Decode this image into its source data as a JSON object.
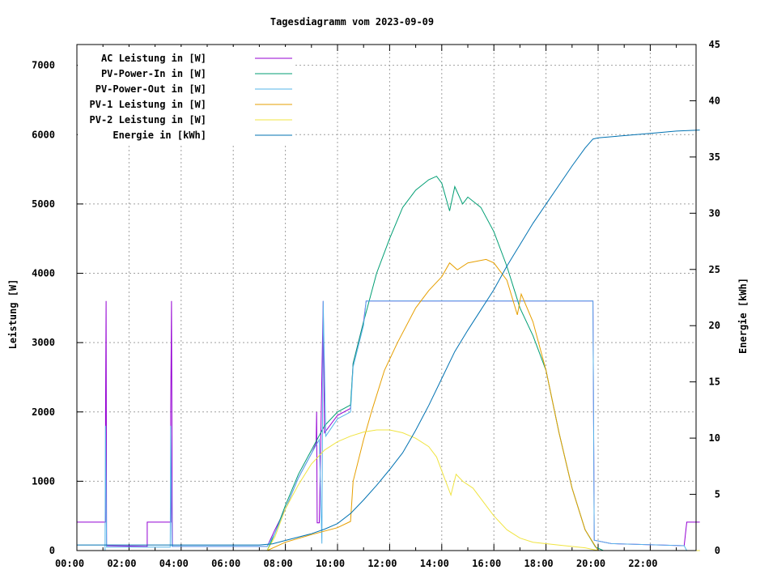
{
  "chart_data": {
    "type": "line",
    "title": "Tagesdiagramm vom 2023-09-09",
    "xlabel": "",
    "ylabel": "Leistung [W]",
    "y2label": "Energie [kWh]",
    "xlim": [
      0,
      23.9
    ],
    "ylim": [
      0,
      7300
    ],
    "y2lim": [
      0,
      45
    ],
    "xticks": [
      "00:00",
      "02:00",
      "04:00",
      "06:00",
      "08:00",
      "10:00",
      "12:00",
      "14:00",
      "16:00",
      "18:00",
      "20:00",
      "22:00"
    ],
    "yticks": [
      0,
      1000,
      2000,
      3000,
      4000,
      5000,
      6000,
      7000
    ],
    "y2ticks": [
      0,
      5,
      10,
      15,
      20,
      25,
      30,
      35,
      40,
      45
    ],
    "grid": true,
    "legend_position": "top-left",
    "series": [
      {
        "name": "AC Leistung in [W]",
        "color": "#9400d3",
        "axis": "y",
        "points": [
          [
            0,
            410
          ],
          [
            1.1,
            410
          ],
          [
            1.1,
            2000
          ],
          [
            1.12,
            3600
          ],
          [
            1.14,
            70
          ],
          [
            2.7,
            60
          ],
          [
            2.7,
            410
          ],
          [
            3.6,
            410
          ],
          [
            3.6,
            2000
          ],
          [
            3.63,
            3600
          ],
          [
            3.66,
            60
          ],
          [
            7.3,
            60
          ],
          [
            7.6,
            300
          ],
          [
            8,
            600
          ],
          [
            8.5,
            1050
          ],
          [
            9,
            1400
          ],
          [
            9.18,
            1550
          ],
          [
            9.2,
            2000
          ],
          [
            9.22,
            400
          ],
          [
            9.3,
            400
          ],
          [
            9.45,
            3600
          ],
          [
            9.5,
            1700
          ],
          [
            10,
            1950
          ],
          [
            10.5,
            2050
          ],
          [
            10.6,
            2700
          ],
          [
            11,
            3300
          ],
          [
            11.1,
            3600
          ],
          [
            19.8,
            3600
          ],
          [
            19.85,
            150
          ],
          [
            20.5,
            100
          ],
          [
            23.3,
            70
          ],
          [
            23.4,
            410
          ],
          [
            23.9,
            410
          ]
        ]
      },
      {
        "name": "PV-Power-In in [W]",
        "color": "#009e73",
        "axis": "y",
        "points": [
          [
            0,
            0
          ],
          [
            7.3,
            0
          ],
          [
            7.6,
            250
          ],
          [
            8,
            650
          ],
          [
            8.5,
            1100
          ],
          [
            9,
            1450
          ],
          [
            9.5,
            1800
          ],
          [
            10,
            2000
          ],
          [
            10.5,
            2100
          ],
          [
            10.6,
            2700
          ],
          [
            11,
            3300
          ],
          [
            11.5,
            4000
          ],
          [
            12,
            4500
          ],
          [
            12.5,
            4950
          ],
          [
            13,
            5200
          ],
          [
            13.5,
            5350
          ],
          [
            13.8,
            5400
          ],
          [
            14,
            5300
          ],
          [
            14.3,
            4900
          ],
          [
            14.5,
            5250
          ],
          [
            14.8,
            5000
          ],
          [
            15,
            5100
          ],
          [
            15.5,
            4950
          ],
          [
            16,
            4600
          ],
          [
            16.5,
            4100
          ],
          [
            17,
            3500
          ],
          [
            17.5,
            3100
          ],
          [
            18,
            2600
          ],
          [
            18.5,
            1700
          ],
          [
            19,
            900
          ],
          [
            19.5,
            300
          ],
          [
            19.9,
            50
          ],
          [
            20.2,
            0
          ],
          [
            23.9,
            0
          ]
        ]
      },
      {
        "name": "PV-Power-Out in [W]",
        "color": "#56b4e9",
        "axis": "y",
        "points": [
          [
            0,
            0
          ],
          [
            1.08,
            0
          ],
          [
            1.1,
            1800
          ],
          [
            1.14,
            50
          ],
          [
            3.58,
            50
          ],
          [
            3.6,
            1800
          ],
          [
            3.65,
            60
          ],
          [
            7.3,
            60
          ],
          [
            7.6,
            250
          ],
          [
            8,
            600
          ],
          [
            8.5,
            1050
          ],
          [
            9,
            1400
          ],
          [
            9.3,
            1600
          ],
          [
            9.4,
            100
          ],
          [
            9.45,
            3600
          ],
          [
            9.55,
            1650
          ],
          [
            10,
            1900
          ],
          [
            10.5,
            2000
          ],
          [
            10.6,
            2650
          ],
          [
            11,
            3250
          ],
          [
            11.1,
            3600
          ],
          [
            19.8,
            3600
          ],
          [
            19.85,
            150
          ],
          [
            20.5,
            100
          ],
          [
            23.3,
            70
          ],
          [
            23.4,
            0
          ],
          [
            23.9,
            0
          ]
        ]
      },
      {
        "name": "PV-1 Leistung in [W]",
        "color": "#e69f00",
        "axis": "y",
        "points": [
          [
            0,
            0
          ],
          [
            7.3,
            0
          ],
          [
            8,
            120
          ],
          [
            9,
            230
          ],
          [
            10,
            330
          ],
          [
            10.5,
            420
          ],
          [
            10.6,
            1000
          ],
          [
            11,
            1600
          ],
          [
            11.3,
            2000
          ],
          [
            11.8,
            2600
          ],
          [
            12.3,
            3000
          ],
          [
            13,
            3500
          ],
          [
            13.5,
            3750
          ],
          [
            14,
            3950
          ],
          [
            14.3,
            4150
          ],
          [
            14.6,
            4050
          ],
          [
            15,
            4150
          ],
          [
            15.7,
            4200
          ],
          [
            16,
            4150
          ],
          [
            16.5,
            3900
          ],
          [
            16.9,
            3400
          ],
          [
            17.05,
            3700
          ],
          [
            17.5,
            3300
          ],
          [
            18,
            2600
          ],
          [
            18.5,
            1700
          ],
          [
            19,
            900
          ],
          [
            19.5,
            300
          ],
          [
            20,
            0
          ],
          [
            23.9,
            0
          ]
        ]
      },
      {
        "name": "PV-2 Leistung in [W]",
        "color": "#f0e442",
        "axis": "y",
        "points": [
          [
            0,
            0
          ],
          [
            7.3,
            0
          ],
          [
            7.6,
            200
          ],
          [
            8,
            600
          ],
          [
            8.5,
            950
          ],
          [
            9,
            1250
          ],
          [
            9.5,
            1450
          ],
          [
            10,
            1570
          ],
          [
            10.5,
            1650
          ],
          [
            11,
            1710
          ],
          [
            11.5,
            1740
          ],
          [
            12,
            1740
          ],
          [
            12.5,
            1700
          ],
          [
            13,
            1620
          ],
          [
            13.5,
            1500
          ],
          [
            13.8,
            1350
          ],
          [
            14.1,
            1050
          ],
          [
            14.35,
            800
          ],
          [
            14.55,
            1100
          ],
          [
            14.8,
            1000
          ],
          [
            15.2,
            900
          ],
          [
            15.6,
            700
          ],
          [
            16,
            500
          ],
          [
            16.5,
            300
          ],
          [
            17,
            180
          ],
          [
            17.5,
            120
          ],
          [
            18.5,
            80
          ],
          [
            19.5,
            40
          ],
          [
            20,
            0
          ],
          [
            23.9,
            0
          ]
        ]
      },
      {
        "name": "Energie in [kWh]",
        "color": "#0072b2",
        "axis": "y2",
        "points": [
          [
            0,
            0.5
          ],
          [
            7,
            0.5
          ],
          [
            7.5,
            0.6
          ],
          [
            8,
            0.9
          ],
          [
            9,
            1.5
          ],
          [
            9.5,
            1.9
          ],
          [
            10,
            2.4
          ],
          [
            10.5,
            3.3
          ],
          [
            11,
            4.5
          ],
          [
            11.5,
            5.8
          ],
          [
            12,
            7.2
          ],
          [
            12.5,
            8.7
          ],
          [
            13,
            10.7
          ],
          [
            13.5,
            12.9
          ],
          [
            14,
            15.3
          ],
          [
            14.5,
            17.7
          ],
          [
            15,
            19.6
          ],
          [
            15.5,
            21.4
          ],
          [
            16,
            23.2
          ],
          [
            16.5,
            25.3
          ],
          [
            17,
            27.2
          ],
          [
            17.5,
            29.1
          ],
          [
            18,
            30.8
          ],
          [
            18.5,
            32.5
          ],
          [
            19,
            34.2
          ],
          [
            19.5,
            35.8
          ],
          [
            19.8,
            36.6
          ],
          [
            20,
            36.7
          ],
          [
            21,
            36.9
          ],
          [
            22,
            37.1
          ],
          [
            23,
            37.3
          ],
          [
            23.9,
            37.4
          ]
        ]
      }
    ]
  }
}
